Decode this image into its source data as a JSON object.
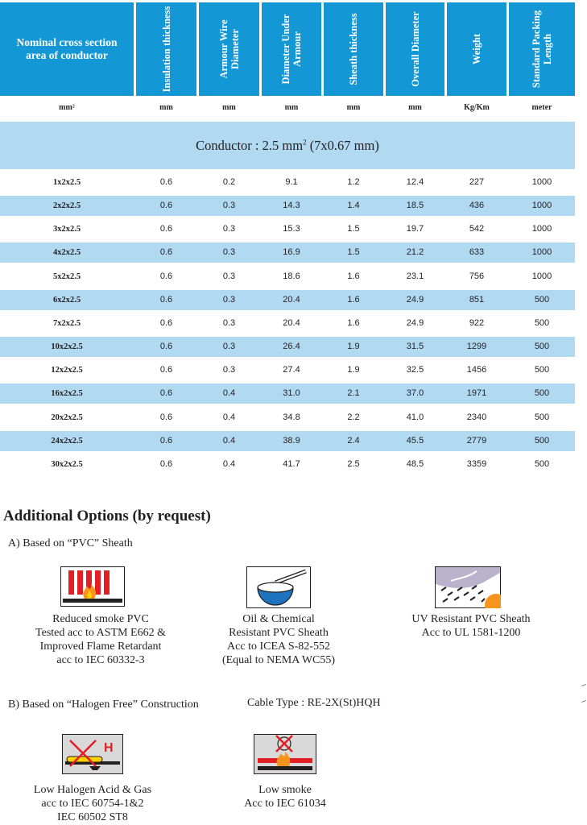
{
  "table": {
    "headers": [
      "Nominal cross section area of conductor",
      "Insulation thickness",
      "Armour Wire Diameter",
      "Diameter Under Armour",
      "Sheath thickness",
      "Overall Diameter",
      "Weight",
      "Standard Packing Length"
    ],
    "units": [
      "mm²",
      "mm",
      "mm",
      "mm",
      "mm",
      "mm",
      "Kg/Km",
      "meter"
    ],
    "conductor_band": {
      "prefix": "Conductor : 2.5 mm",
      "sup": "2",
      "suffix": " (7x0.67 mm)"
    },
    "rows": [
      [
        "1x2x2.5",
        "0.6",
        "0.2",
        "9.1",
        "1.2",
        "12.4",
        "227",
        "1000"
      ],
      [
        "2x2x2.5",
        "0.6",
        "0.3",
        "14.3",
        "1.4",
        "18.5",
        "436",
        "1000"
      ],
      [
        "3x2x2.5",
        "0.6",
        "0.3",
        "15.3",
        "1.5",
        "19.7",
        "542",
        "1000"
      ],
      [
        "4x2x2.5",
        "0.6",
        "0.3",
        "16.9",
        "1.5",
        "21.2",
        "633",
        "1000"
      ],
      [
        "5x2x2.5",
        "0.6",
        "0.3",
        "18.6",
        "1.6",
        "23.1",
        "756",
        "1000"
      ],
      [
        "6x2x2.5",
        "0.6",
        "0.3",
        "20.4",
        "1.6",
        "24.9",
        "851",
        "500"
      ],
      [
        "7x2x2.5",
        "0.6",
        "0.3",
        "20.4",
        "1.6",
        "24.9",
        "922",
        "500"
      ],
      [
        "10x2x2.5",
        "0.6",
        "0.3",
        "26.4",
        "1.9",
        "31.5",
        "1299",
        "500"
      ],
      [
        "12x2x2.5",
        "0.6",
        "0.3",
        "27.4",
        "1.9",
        "32.5",
        "1456",
        "500"
      ],
      [
        "16x2x2.5",
        "0.6",
        "0.4",
        "31.0",
        "2.1",
        "37.0",
        "1971",
        "500"
      ],
      [
        "20x2x2.5",
        "0.6",
        "0.4",
        "34.8",
        "2.2",
        "41.0",
        "2340",
        "500"
      ],
      [
        "24x2x2.5",
        "0.6",
        "0.4",
        "38.9",
        "2.4",
        "45.5",
        "2779",
        "500"
      ],
      [
        "30x2x2.5",
        "0.6",
        "0.4",
        "41.7",
        "2.5",
        "48.5",
        "3359",
        "500"
      ]
    ]
  },
  "options": {
    "title": "Additional Options (by request)",
    "section_a": "A) Based on “PVC” Sheath",
    "section_b": "B) Based on “Halogen Free” Construction",
    "cable_type": "Cable Type : RE-2X(St)HQH",
    "a_items": [
      {
        "icon": "reduced-smoke-icon",
        "lines": [
          "Reduced smoke PVC",
          "Tested acc to ASTM E662 &",
          "Improved Flame Retardant",
          "acc to IEC 60332-3"
        ]
      },
      {
        "icon": "oil-chemical-icon",
        "lines": [
          "Oil & Chemical",
          "Resistant PVC Sheath",
          "Acc to ICEA S-82-552",
          "(Equal to NEMA WC55)"
        ]
      },
      {
        "icon": "uv-resistant-icon",
        "lines": [
          "UV Resistant PVC Sheath",
          "Acc to UL 1581-1200"
        ]
      }
    ],
    "b_items": [
      {
        "icon": "low-halogen-icon",
        "icon_letter": "H",
        "lines": [
          "Low Halogen Acid & Gas",
          "acc to IEC 60754-1&2",
          "IEC 60502 ST8"
        ]
      },
      {
        "icon": "low-smoke-icon",
        "lines": [
          "Low smoke",
          "Acc to IEC 61034"
        ]
      }
    ]
  },
  "colors": {
    "header_blue": "#1497d5",
    "row_shade": "#b1d9f2",
    "flame_red": "#e31e24",
    "icon_bg": "#d9d9d9"
  }
}
